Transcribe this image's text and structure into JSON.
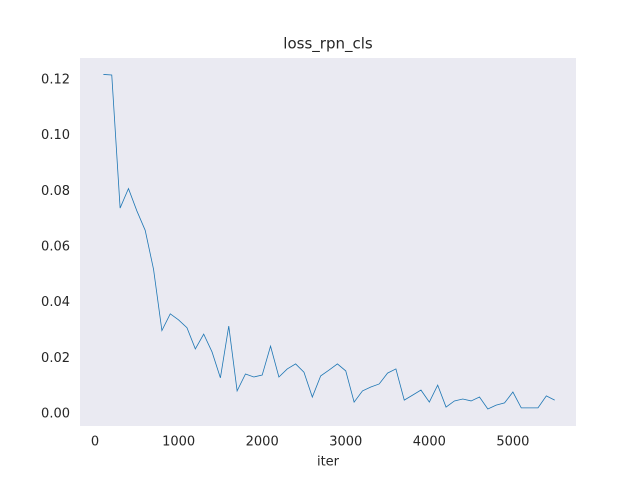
{
  "chart_data": {
    "type": "line",
    "title": "loss_rpn_cls",
    "xlabel": "iter",
    "x": [
      100,
      200,
      300,
      400,
      500,
      600,
      700,
      800,
      900,
      1000,
      1100,
      1200,
      1300,
      1400,
      1500,
      1600,
      1700,
      1800,
      1900,
      2000,
      2100,
      2200,
      2300,
      2400,
      2500,
      2600,
      2700,
      2800,
      2900,
      3000,
      3100,
      3200,
      3300,
      3400,
      3500,
      3600,
      3700,
      3800,
      3900,
      4000,
      4100,
      4200,
      4300,
      4400,
      4500,
      4600,
      4700,
      4800,
      4900,
      5000,
      5100,
      5200,
      5300,
      5400,
      5500
    ],
    "series": [
      {
        "color": "#1f77b4",
        "values": [
          0.122,
          0.1218,
          0.074,
          0.081,
          0.073,
          0.066,
          0.052,
          0.03,
          0.036,
          0.0338,
          0.031,
          0.0234,
          0.0287,
          0.0223,
          0.013,
          0.0316,
          0.0083,
          0.0144,
          0.0133,
          0.014,
          0.0244,
          0.0133,
          0.0162,
          0.018,
          0.015,
          0.0061,
          0.0137,
          0.0158,
          0.018,
          0.0155,
          0.0043,
          0.0083,
          0.0097,
          0.0108,
          0.0147,
          0.0162,
          0.005,
          0.0068,
          0.0086,
          0.0043,
          0.0104,
          0.0025,
          0.0047,
          0.0054,
          0.0047,
          0.0061,
          0.0018,
          0.0032,
          0.004,
          0.0079,
          0.0022,
          0.0022,
          0.0022,
          0.0065,
          0.005
        ]
      }
    ],
    "xlim": [
      -180,
      5755
    ],
    "ylim": [
      -0.0043,
      0.1279
    ],
    "xticks": [
      0,
      1000,
      2000,
      3000,
      4000,
      5000
    ],
    "yticks": [
      {
        "value": 0,
        "label": "0.00"
      },
      {
        "value": 0.02,
        "label": "0.02"
      },
      {
        "value": 0.04,
        "label": "0.04"
      },
      {
        "value": 0.06,
        "label": "0.06"
      },
      {
        "value": 0.08,
        "label": "0.08"
      },
      {
        "value": 0.1,
        "label": "0.10"
      },
      {
        "value": 0.12,
        "label": "0.12"
      }
    ],
    "background": "#eaeaf2",
    "grid": false
  }
}
